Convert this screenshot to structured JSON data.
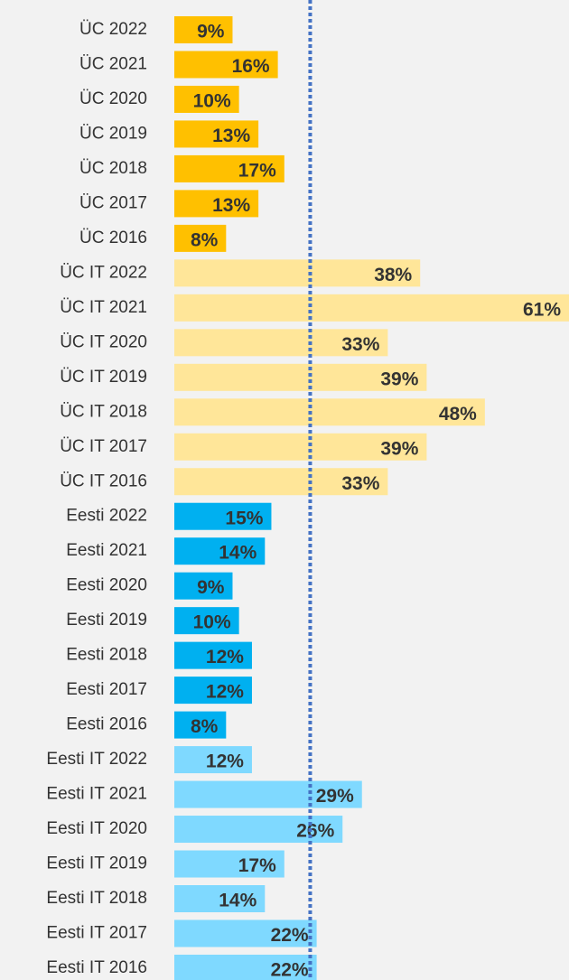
{
  "chart_data": {
    "type": "bar",
    "orientation": "horizontal",
    "categories": [
      "ÜC 2022",
      "ÜC 2021",
      "ÜC 2020",
      "ÜC 2019",
      "ÜC 2018",
      "ÜC 2017",
      "ÜC 2016",
      "ÜC IT 2022",
      "ÜC IT 2021",
      "ÜC IT 2020",
      "ÜC IT 2019",
      "ÜC IT 2018",
      "ÜC IT 2017",
      "ÜC IT 2016",
      "Eesti 2022",
      "Eesti 2021",
      "Eesti 2020",
      "Eesti 2019",
      "Eesti 2018",
      "Eesti 2017",
      "Eesti 2016",
      "Eesti IT 2022",
      "Eesti IT 2021",
      "Eesti IT 2020",
      "Eesti IT 2019",
      "Eesti IT 2018",
      "Eesti IT 2017",
      "Eesti IT 2016"
    ],
    "values": [
      9,
      16,
      10,
      13,
      17,
      13,
      8,
      38,
      61,
      33,
      39,
      48,
      39,
      33,
      15,
      14,
      9,
      10,
      12,
      12,
      8,
      12,
      29,
      26,
      17,
      14,
      22,
      22
    ],
    "value_labels": [
      "9%",
      "16%",
      "10%",
      "13%",
      "17%",
      "13%",
      "8%",
      "38%",
      "61%",
      "33%",
      "39%",
      "48%",
      "39%",
      "33%",
      "15%",
      "14%",
      "9%",
      "10%",
      "12%",
      "12%",
      "8%",
      "12%",
      "29%",
      "26%",
      "17%",
      "14%",
      "22%",
      "22%"
    ],
    "colors": [
      "#ffc000",
      "#ffc000",
      "#ffc000",
      "#ffc000",
      "#ffc000",
      "#ffc000",
      "#ffc000",
      "#ffe699",
      "#ffe699",
      "#ffe699",
      "#ffe699",
      "#ffe699",
      "#ffe699",
      "#ffe699",
      "#00b0f0",
      "#00b0f0",
      "#00b0f0",
      "#00b0f0",
      "#00b0f0",
      "#00b0f0",
      "#00b0f0",
      "#7fd9ff",
      "#7fd9ff",
      "#7fd9ff",
      "#7fd9ff",
      "#7fd9ff",
      "#7fd9ff",
      "#7fd9ff"
    ],
    "reference_line": {
      "value": 21,
      "color": "#4472c4"
    },
    "xlim": [
      0,
      61
    ]
  }
}
